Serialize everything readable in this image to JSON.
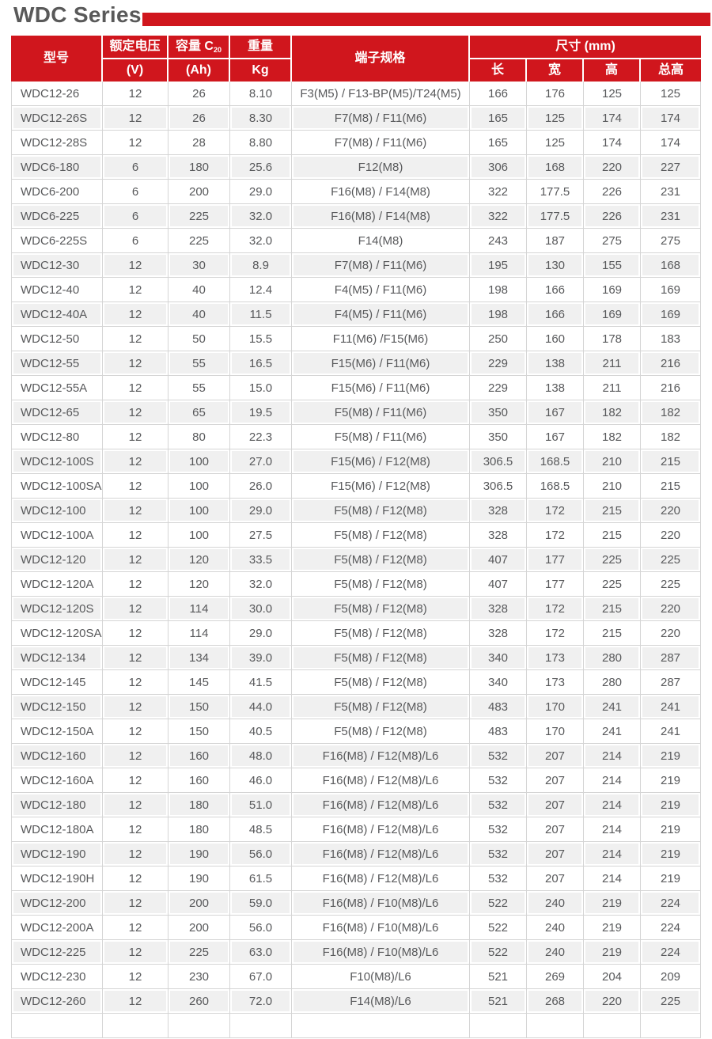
{
  "page": {
    "title": "WDC Series",
    "accent_color": "#d0161d",
    "title_color": "#595959"
  },
  "table": {
    "headers": {
      "model": "型号",
      "voltage_line1": "额定电压",
      "voltage_line2": "(V)",
      "capacity_prefix": "容量 C",
      "capacity_sub": "20",
      "capacity_line2": "(Ah)",
      "weight_line1": "重量",
      "weight_line2": "Kg",
      "terminal": "端子规格",
      "dimensions": "尺寸 (mm)",
      "dim_length": "长",
      "dim_width": "宽",
      "dim_height": "高",
      "dim_total_height": "总高"
    },
    "rows": [
      [
        "WDC12-26",
        "12",
        "26",
        "8.10",
        "F3(M5) / F13-BP(M5)/T24(M5)",
        "166",
        "176",
        "125",
        "125"
      ],
      [
        "WDC12-26S",
        "12",
        "26",
        "8.30",
        "F7(M8) / F11(M6)",
        "165",
        "125",
        "174",
        "174"
      ],
      [
        "WDC12-28S",
        "12",
        "28",
        "8.80",
        "F7(M8) / F11(M6)",
        "165",
        "125",
        "174",
        "174"
      ],
      [
        "WDC6-180",
        "6",
        "180",
        "25.6",
        "F12(M8)",
        "306",
        "168",
        "220",
        "227"
      ],
      [
        "WDC6-200",
        "6",
        "200",
        "29.0",
        "F16(M8) / F14(M8)",
        "322",
        "177.5",
        "226",
        "231"
      ],
      [
        "WDC6-225",
        "6",
        "225",
        "32.0",
        "F16(M8) / F14(M8)",
        "322",
        "177.5",
        "226",
        "231"
      ],
      [
        "WDC6-225S",
        "6",
        "225",
        "32.0",
        "F14(M8)",
        "243",
        "187",
        "275",
        "275"
      ],
      [
        "WDC12-30",
        "12",
        "30",
        "8.9",
        "F7(M8) / F11(M6)",
        "195",
        "130",
        "155",
        "168"
      ],
      [
        "WDC12-40",
        "12",
        "40",
        "12.4",
        "F4(M5) / F11(M6)",
        "198",
        "166",
        "169",
        "169"
      ],
      [
        "WDC12-40A",
        "12",
        "40",
        "11.5",
        "F4(M5) / F11(M6)",
        "198",
        "166",
        "169",
        "169"
      ],
      [
        "WDC12-50",
        "12",
        "50",
        "15.5",
        "F11(M6) /F15(M6)",
        "250",
        "160",
        "178",
        "183"
      ],
      [
        "WDC12-55",
        "12",
        "55",
        "16.5",
        "F15(M6) / F11(M6)",
        "229",
        "138",
        "211",
        "216"
      ],
      [
        "WDC12-55A",
        "12",
        "55",
        "15.0",
        "F15(M6) / F11(M6)",
        "229",
        "138",
        "211",
        "216"
      ],
      [
        "WDC12-65",
        "12",
        "65",
        "19.5",
        "F5(M8) / F11(M6)",
        "350",
        "167",
        "182",
        "182"
      ],
      [
        "WDC12-80",
        "12",
        "80",
        "22.3",
        "F5(M8) / F11(M6)",
        "350",
        "167",
        "182",
        "182"
      ],
      [
        "WDC12-100S",
        "12",
        "100",
        "27.0",
        "F15(M6) / F12(M8)",
        "306.5",
        "168.5",
        "210",
        "215"
      ],
      [
        "WDC12-100SA",
        "12",
        "100",
        "26.0",
        "F15(M6) / F12(M8)",
        "306.5",
        "168.5",
        "210",
        "215"
      ],
      [
        "WDC12-100",
        "12",
        "100",
        "29.0",
        "F5(M8) / F12(M8)",
        "328",
        "172",
        "215",
        "220"
      ],
      [
        "WDC12-100A",
        "12",
        "100",
        "27.5",
        "F5(M8) / F12(M8)",
        "328",
        "172",
        "215",
        "220"
      ],
      [
        "WDC12-120",
        "12",
        "120",
        "33.5",
        "F5(M8) / F12(M8)",
        "407",
        "177",
        "225",
        "225"
      ],
      [
        "WDC12-120A",
        "12",
        "120",
        "32.0",
        "F5(M8) / F12(M8)",
        "407",
        "177",
        "225",
        "225"
      ],
      [
        "WDC12-120S",
        "12",
        "114",
        "30.0",
        "F5(M8) / F12(M8)",
        "328",
        "172",
        "215",
        "220"
      ],
      [
        "WDC12-120SA",
        "12",
        "114",
        "29.0",
        "F5(M8) / F12(M8)",
        "328",
        "172",
        "215",
        "220"
      ],
      [
        "WDC12-134",
        "12",
        "134",
        "39.0",
        "F5(M8) / F12(M8)",
        "340",
        "173",
        "280",
        "287"
      ],
      [
        "WDC12-145",
        "12",
        "145",
        "41.5",
        "F5(M8) / F12(M8)",
        "340",
        "173",
        "280",
        "287"
      ],
      [
        "WDC12-150",
        "12",
        "150",
        "44.0",
        "F5(M8) / F12(M8)",
        "483",
        "170",
        "241",
        "241"
      ],
      [
        "WDC12-150A",
        "12",
        "150",
        "40.5",
        "F5(M8) / F12(M8)",
        "483",
        "170",
        "241",
        "241"
      ],
      [
        "WDC12-160",
        "12",
        "160",
        "48.0",
        "F16(M8) / F12(M8)/L6",
        "532",
        "207",
        "214",
        "219"
      ],
      [
        "WDC12-160A",
        "12",
        "160",
        "46.0",
        "F16(M8) / F12(M8)/L6",
        "532",
        "207",
        "214",
        "219"
      ],
      [
        "WDC12-180",
        "12",
        "180",
        "51.0",
        "F16(M8) / F12(M8)/L6",
        "532",
        "207",
        "214",
        "219"
      ],
      [
        "WDC12-180A",
        "12",
        "180",
        "48.5",
        "F16(M8) / F12(M8)/L6",
        "532",
        "207",
        "214",
        "219"
      ],
      [
        "WDC12-190",
        "12",
        "190",
        "56.0",
        "F16(M8) / F12(M8)/L6",
        "532",
        "207",
        "214",
        "219"
      ],
      [
        "WDC12-190H",
        "12",
        "190",
        "61.5",
        "F16(M8) / F12(M8)/L6",
        "532",
        "207",
        "214",
        "219"
      ],
      [
        "WDC12-200",
        "12",
        "200",
        "59.0",
        "F16(M8) / F10(M8)/L6",
        "522",
        "240",
        "219",
        "224"
      ],
      [
        "WDC12-200A",
        "12",
        "200",
        "56.0",
        "F16(M8) / F10(M8)/L6",
        "522",
        "240",
        "219",
        "224"
      ],
      [
        "WDC12-225",
        "12",
        "225",
        "63.0",
        "F16(M8) / F10(M8)/L6",
        "522",
        "240",
        "219",
        "224"
      ],
      [
        "WDC12-230",
        "12",
        "230",
        "67.0",
        "F10(M8)/L6",
        "521",
        "269",
        "204",
        "209"
      ],
      [
        "WDC12-260",
        "12",
        "260",
        "72.0",
        "F14(M8)/L6",
        "521",
        "268",
        "220",
        "225"
      ],
      [
        "",
        "",
        "",
        "",
        "",
        "",
        "",
        "",
        ""
      ]
    ]
  }
}
